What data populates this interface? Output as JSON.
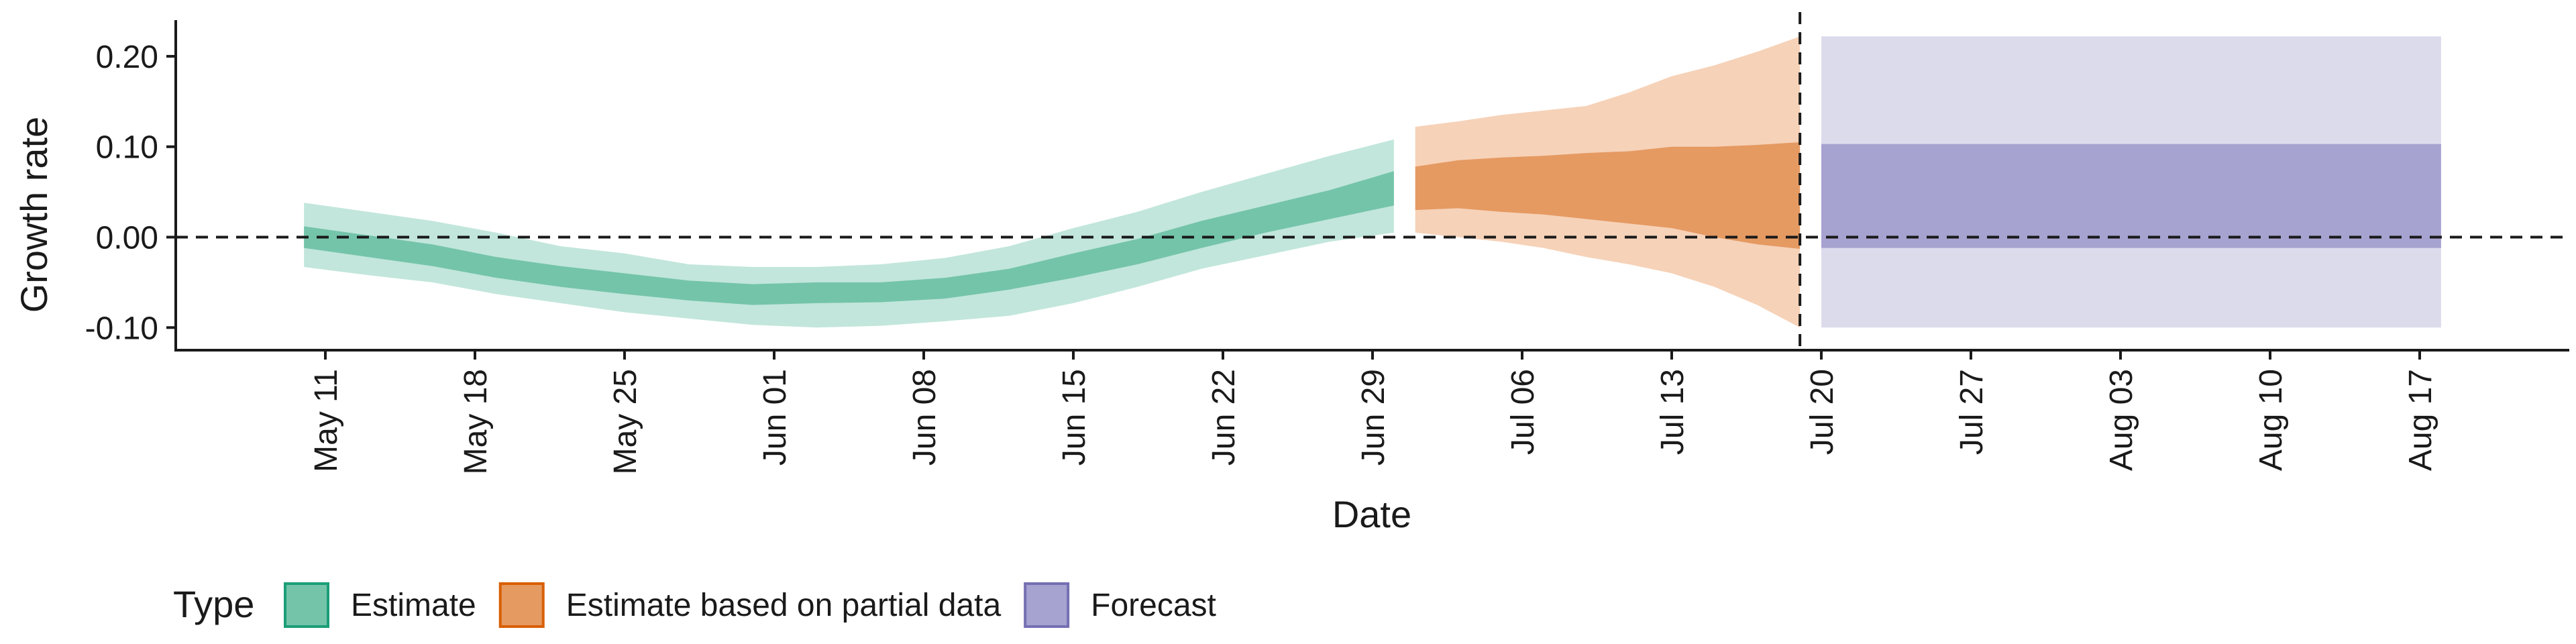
{
  "chart_data": {
    "type": "area",
    "title": "",
    "xlabel": "Date",
    "ylabel": "Growth rate",
    "xlim": [
      "2020-05-04",
      "2020-08-24"
    ],
    "ylim": [
      -0.125,
      0.24
    ],
    "grid": false,
    "x_ticks": [
      {
        "date": "2020-05-11",
        "label": "May 11"
      },
      {
        "date": "2020-05-18",
        "label": "May 18"
      },
      {
        "date": "2020-05-25",
        "label": "May 25"
      },
      {
        "date": "2020-06-01",
        "label": "Jun 01"
      },
      {
        "date": "2020-06-08",
        "label": "Jun 08"
      },
      {
        "date": "2020-06-15",
        "label": "Jun 15"
      },
      {
        "date": "2020-06-22",
        "label": "Jun 22"
      },
      {
        "date": "2020-06-29",
        "label": "Jun 29"
      },
      {
        "date": "2020-07-06",
        "label": "Jul 06"
      },
      {
        "date": "2020-07-13",
        "label": "Jul 13"
      },
      {
        "date": "2020-07-20",
        "label": "Jul 20"
      },
      {
        "date": "2020-07-27",
        "label": "Jul 27"
      },
      {
        "date": "2020-08-03",
        "label": "Aug 03"
      },
      {
        "date": "2020-08-10",
        "label": "Aug 10"
      },
      {
        "date": "2020-08-17",
        "label": "Aug 17"
      }
    ],
    "y_ticks": [
      {
        "value": 0.2,
        "label": "0.20"
      },
      {
        "value": 0.1,
        "label": "0.10"
      },
      {
        "value": 0.0,
        "label": "0.00"
      },
      {
        "value": -0.1,
        "label": "-0.10"
      }
    ],
    "hline_y": 0.0,
    "vline_x": "2020-07-19",
    "legend": {
      "title": "Type",
      "position": "bottom-left",
      "entries": [
        "Estimate",
        "Estimate based on partial data",
        "Forecast"
      ]
    },
    "series": [
      {
        "name": "Estimate",
        "fill_outer": "#c2e6db",
        "fill_inner": "#74c4aa",
        "edge": "#1b9e77",
        "x": [
          "2020-05-10",
          "2020-05-13",
          "2020-05-16",
          "2020-05-19",
          "2020-05-22",
          "2020-05-25",
          "2020-05-28",
          "2020-05-31",
          "2020-06-03",
          "2020-06-06",
          "2020-06-09",
          "2020-06-12",
          "2020-06-15",
          "2020-06-18",
          "2020-06-21",
          "2020-06-24",
          "2020-06-27",
          "2020-06-30"
        ],
        "outer_low": [
          -0.033,
          -0.042,
          -0.05,
          -0.063,
          -0.073,
          -0.083,
          -0.09,
          -0.097,
          -0.1,
          -0.098,
          -0.093,
          -0.087,
          -0.073,
          -0.055,
          -0.035,
          -0.02,
          -0.005,
          0.005
        ],
        "outer_high": [
          0.038,
          0.028,
          0.018,
          0.005,
          -0.01,
          -0.018,
          -0.03,
          -0.033,
          -0.033,
          -0.03,
          -0.023,
          -0.01,
          0.01,
          0.028,
          0.05,
          0.07,
          0.09,
          0.108
        ],
        "inner_low": [
          -0.012,
          -0.022,
          -0.032,
          -0.045,
          -0.055,
          -0.063,
          -0.07,
          -0.075,
          -0.073,
          -0.072,
          -0.068,
          -0.058,
          -0.045,
          -0.03,
          -0.012,
          0.005,
          0.02,
          0.035
        ],
        "inner_high": [
          0.012,
          0.002,
          -0.008,
          -0.022,
          -0.032,
          -0.04,
          -0.048,
          -0.052,
          -0.05,
          -0.05,
          -0.045,
          -0.035,
          -0.018,
          -0.002,
          0.018,
          0.035,
          0.052,
          0.073
        ]
      },
      {
        "name": "Estimate based on partial data",
        "fill_outer": "#f6d2b8",
        "fill_inner": "#e59a62",
        "edge": "#d95f02",
        "x": [
          "2020-07-01",
          "2020-07-03",
          "2020-07-05",
          "2020-07-07",
          "2020-07-09",
          "2020-07-11",
          "2020-07-13",
          "2020-07-15",
          "2020-07-17",
          "2020-07-19"
        ],
        "outer_low": [
          0.005,
          0.0,
          -0.005,
          -0.012,
          -0.022,
          -0.03,
          -0.04,
          -0.055,
          -0.075,
          -0.1
        ],
        "outer_high": [
          0.122,
          0.128,
          0.135,
          0.14,
          0.145,
          0.16,
          0.178,
          0.19,
          0.205,
          0.222
        ],
        "inner_low": [
          0.03,
          0.032,
          0.028,
          0.025,
          0.02,
          0.015,
          0.01,
          0.0,
          -0.008,
          -0.013
        ],
        "inner_high": [
          0.078,
          0.085,
          0.088,
          0.09,
          0.093,
          0.095,
          0.1,
          0.1,
          0.102,
          0.105
        ]
      },
      {
        "name": "Forecast",
        "fill_outer": "#dcdbec",
        "fill_inner": "#a6a3d0",
        "edge": "#7570b3",
        "x": [
          "2020-07-20",
          "2020-08-18"
        ],
        "outer_low": [
          -0.1,
          -0.1
        ],
        "outer_high": [
          0.222,
          0.222
        ],
        "inner_low": [
          -0.012,
          -0.012
        ],
        "inner_high": [
          0.103,
          0.103
        ]
      }
    ]
  }
}
